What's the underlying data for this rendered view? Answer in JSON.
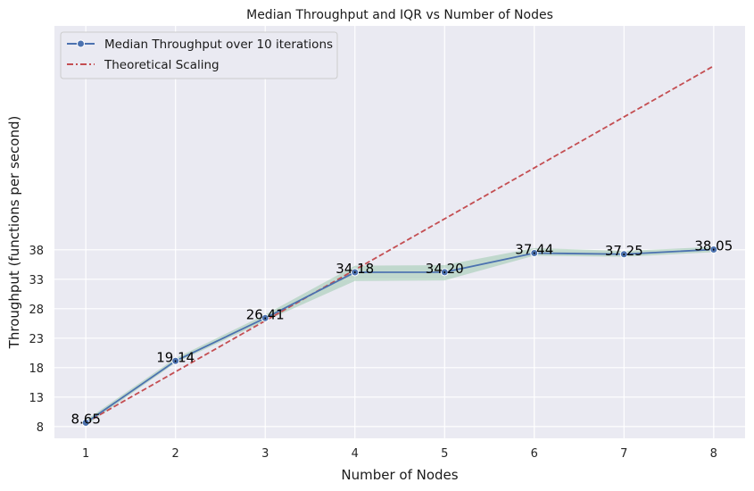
{
  "chart_data": {
    "type": "line",
    "title": "Median Throughput and IQR vs Number of Nodes",
    "xlabel": "Number of Nodes",
    "ylabel": "Throughput (functions per second)",
    "x": [
      1,
      2,
      3,
      4,
      5,
      6,
      7,
      8
    ],
    "xticks": [
      "1",
      "2",
      "3",
      "4",
      "5",
      "6",
      "7",
      "8"
    ],
    "yticks": [
      "8",
      "13",
      "18",
      "23",
      "28",
      "33",
      "38"
    ],
    "xlim": [
      0.65,
      8.35
    ],
    "ylim": [
      6.0,
      76.0
    ],
    "grid": true,
    "legend_position": "top-left",
    "series": [
      {
        "name": "Median Throughput over 10 iterations",
        "style": "solid line with circle markers",
        "color": "#4c72b0",
        "values": [
          8.65,
          19.14,
          26.41,
          34.18,
          34.2,
          37.44,
          37.25,
          38.05
        ],
        "labels": [
          "8.65",
          "19.14",
          "26.41",
          "34.18",
          "34.20",
          "37.44",
          "37.25",
          "38.05"
        ]
      },
      {
        "name": "Theoretical Scaling",
        "style": "dash-dot line",
        "color": "#c44e52",
        "values": [
          8.65,
          17.3,
          25.95,
          34.6,
          43.25,
          51.9,
          60.55,
          69.2
        ]
      }
    ],
    "iqr_band": {
      "color": "#8fc4a0",
      "lower": [
        8.2,
        18.8,
        25.9,
        32.7,
        32.8,
        37.0,
        36.8,
        37.6
      ],
      "upper": [
        9.1,
        19.6,
        27.0,
        35.3,
        35.4,
        38.3,
        37.8,
        38.5
      ]
    }
  }
}
